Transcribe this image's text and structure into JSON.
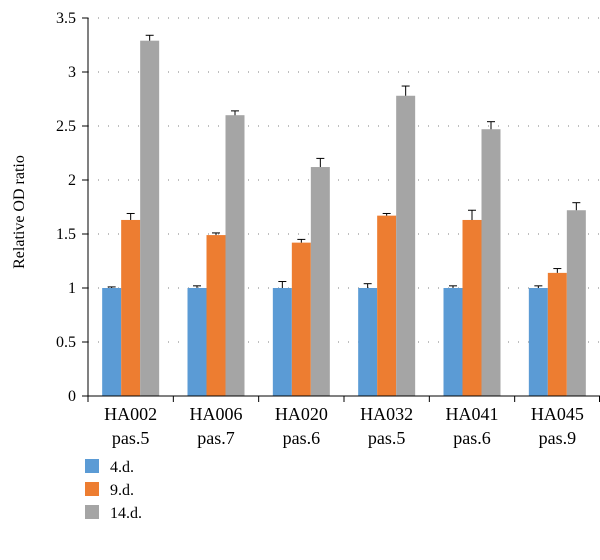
{
  "chart_data": {
    "type": "bar",
    "ylabel": "Relative OD ratio",
    "xlabel": "",
    "ylim": [
      0,
      3.5
    ],
    "yticks": [
      0,
      0.5,
      1,
      1.5,
      2,
      2.5,
      3,
      3.5
    ],
    "ytick_labels": [
      "0",
      "0.5",
      "1",
      "1.5",
      "2",
      "2.5",
      "3",
      "3.5"
    ],
    "grid": "horizontal dotted",
    "legend_position": "bottom-left",
    "categories": [
      [
        "HA002",
        "pas.5"
      ],
      [
        "HA006",
        "pas.7"
      ],
      [
        "HA020",
        "pas.6"
      ],
      [
        "HA032",
        "pas.5"
      ],
      [
        "HA041",
        "pas.6"
      ],
      [
        "HA045",
        "pas.9"
      ]
    ],
    "series": [
      {
        "name": "4.d.",
        "color": "#5b9bd5",
        "values": [
          1.0,
          1.0,
          1.0,
          1.0,
          1.0,
          1.0
        ],
        "errors": [
          0.01,
          0.02,
          0.06,
          0.04,
          0.02,
          0.02
        ]
      },
      {
        "name": "9.d.",
        "color": "#ed7d31",
        "values": [
          1.63,
          1.49,
          1.42,
          1.67,
          1.63,
          1.14
        ],
        "errors": [
          0.06,
          0.02,
          0.03,
          0.02,
          0.09,
          0.04
        ]
      },
      {
        "name": "14.d.",
        "color": "#a5a5a5",
        "values": [
          3.29,
          2.6,
          2.12,
          2.78,
          2.47,
          1.72
        ],
        "errors": [
          0.05,
          0.04,
          0.08,
          0.09,
          0.07,
          0.07
        ]
      }
    ]
  }
}
